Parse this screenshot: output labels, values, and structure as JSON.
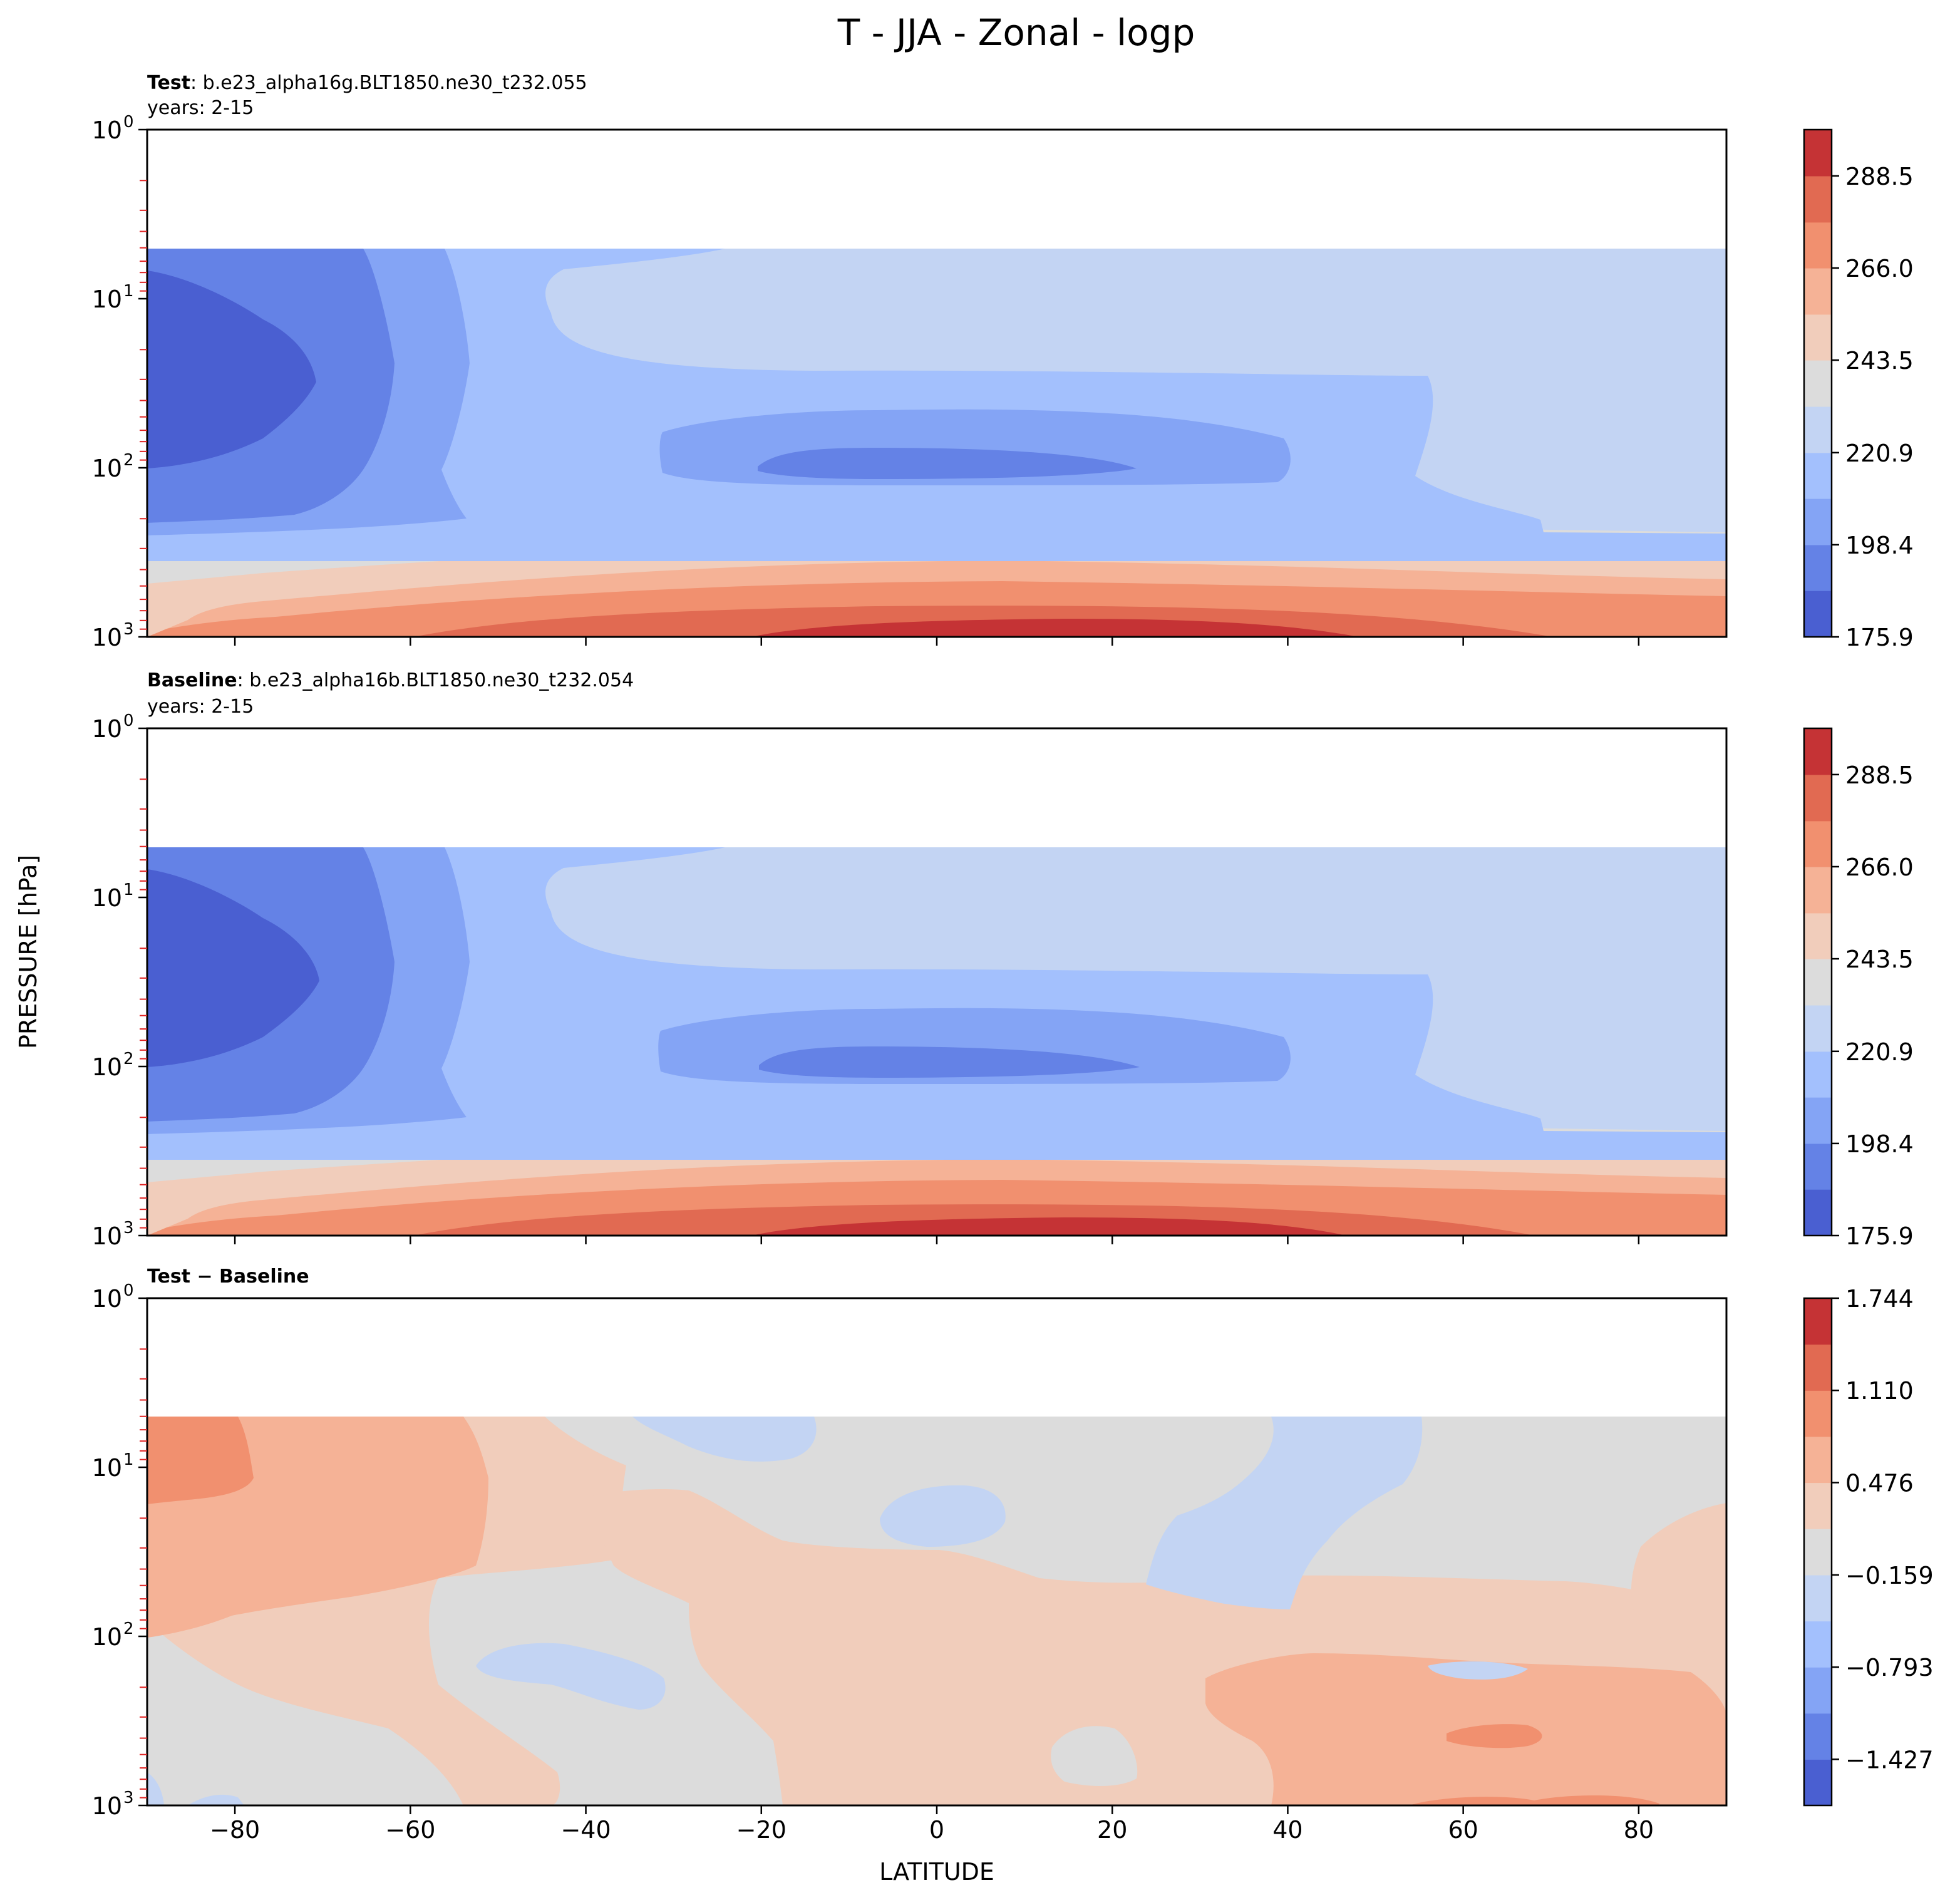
{
  "figure": {
    "title": "T - JJA - Zonal - logp",
    "xlabel": "LATITUDE",
    "ylabel": "PRESSURE [hPa]"
  },
  "colors": {
    "blue_dark": "#4a5fd1",
    "blue_5": "#6482e6",
    "blue_4": "#84a4f5",
    "blue_3": "#a3c0fd",
    "blue_2": "#c3d4f3",
    "gray": "#dcdcdc",
    "red_1": "#f1cdbb",
    "red_2": "#f5b296",
    "red_3": "#f1906f",
    "red_4": "#e16a52",
    "red_dark": "#c53335"
  },
  "chart_data": [
    {
      "type": "contour",
      "panel": "test",
      "label_bold": "Test",
      "label_rest": ": b.e23_alpha16g.BLT1850.ne30_t232.055",
      "years": "years: 2-15",
      "x_ticks": [
        -80,
        -60,
        -40,
        -20,
        0,
        20,
        40,
        60,
        80
      ],
      "xlim": [
        -90,
        90
      ],
      "y_scale": "log",
      "ylim": [
        1000,
        1
      ],
      "y_ticks": [
        1,
        10,
        100,
        1000
      ],
      "y_tick_labels": [
        "10",
        "10",
        "10",
        "10"
      ],
      "y_tick_exponents": [
        "0",
        "1",
        "2",
        "3"
      ],
      "data_top_hPa": 5,
      "colorbar": {
        "min": 175.9,
        "max": 299.8,
        "levels": [
          175.9,
          187.2,
          198.4,
          209.7,
          220.9,
          232.2,
          243.5,
          254.7,
          266.0,
          277.2,
          288.5,
          299.8
        ],
        "tick_values": [
          175.9,
          198.4,
          220.9,
          243.5,
          266.0,
          288.5
        ],
        "tick_labels": [
          "175.9",
          "198.4",
          "220.9",
          "243.5",
          "266.0",
          "288.5"
        ]
      }
    },
    {
      "type": "contour",
      "panel": "baseline",
      "label_bold": "Baseline",
      "label_rest": ": b.e23_alpha16b.BLT1850.ne30_t232.054",
      "years": "years: 2-15",
      "x_ticks": [
        -80,
        -60,
        -40,
        -20,
        0,
        20,
        40,
        60,
        80
      ],
      "xlim": [
        -90,
        90
      ],
      "y_scale": "log",
      "ylim": [
        1000,
        1
      ],
      "y_ticks": [
        1,
        10,
        100,
        1000
      ],
      "y_tick_labels": [
        "10",
        "10",
        "10",
        "10"
      ],
      "y_tick_exponents": [
        "0",
        "1",
        "2",
        "3"
      ],
      "data_top_hPa": 5,
      "colorbar": {
        "min": 175.9,
        "max": 299.8,
        "levels": [
          175.9,
          187.2,
          198.4,
          209.7,
          220.9,
          232.2,
          243.5,
          254.7,
          266.0,
          277.2,
          288.5,
          299.8
        ],
        "tick_values": [
          175.9,
          198.4,
          220.9,
          243.5,
          266.0,
          288.5
        ],
        "tick_labels": [
          "175.9",
          "198.4",
          "220.9",
          "243.5",
          "266.0",
          "288.5"
        ]
      }
    },
    {
      "type": "contour",
      "panel": "diff",
      "label_bold": "Test − Baseline",
      "label_rest": "",
      "years": "",
      "x_ticks": [
        -80,
        -60,
        -40,
        -20,
        0,
        20,
        40,
        60,
        80
      ],
      "x_tick_labels": [
        "−80",
        "−60",
        "−40",
        "−20",
        "0",
        "20",
        "40",
        "60",
        "80"
      ],
      "xlim": [
        -90,
        90
      ],
      "y_scale": "log",
      "ylim": [
        1000,
        1
      ],
      "y_ticks": [
        1,
        10,
        100,
        1000
      ],
      "y_tick_labels": [
        "10",
        "10",
        "10",
        "10"
      ],
      "y_tick_exponents": [
        "0",
        "1",
        "2",
        "3"
      ],
      "data_top_hPa": 5,
      "colorbar": {
        "min": -1.744,
        "max": 1.744,
        "levels": [
          -1.744,
          -1.427,
          -1.11,
          -0.793,
          -0.476,
          -0.159,
          0.159,
          0.476,
          0.793,
          1.11,
          1.427,
          1.744
        ],
        "tick_values": [
          -1.427,
          -0.793,
          -0.159,
          0.476,
          1.11,
          1.744
        ],
        "tick_labels": [
          "−1.427",
          "−0.793",
          "−0.159",
          "0.476",
          "1.110",
          "1.744"
        ]
      }
    }
  ]
}
